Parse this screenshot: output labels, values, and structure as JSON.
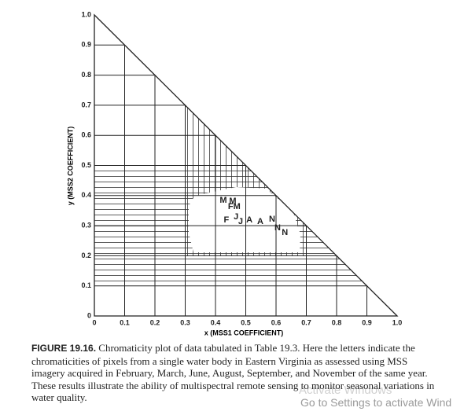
{
  "chart_data": {
    "type": "scatter",
    "xlabel": "x (MSS1 COEFFICIENT)",
    "ylabel": "y (MSS2 COEFFICIENT)",
    "xlim": [
      0,
      1
    ],
    "ylim": [
      0,
      1
    ],
    "xticks": [
      0,
      0.1,
      0.2,
      0.3,
      0.4,
      0.5,
      0.6,
      0.7,
      0.8,
      0.9,
      {
        "value": 1,
        "label": "1.0"
      }
    ],
    "yticks": [
      0,
      0.1,
      0.2,
      0.3,
      0.4,
      0.5,
      0.6,
      0.7,
      0.8,
      0.9,
      {
        "value": 1,
        "label": "1.0"
      }
    ],
    "grid": true,
    "color": "#222222",
    "x": [
      0.426,
      0.457,
      0.462,
      0.436,
      0.468,
      0.483,
      0.512,
      0.548,
      0.587,
      0.605,
      0.629
    ],
    "y": [
      0.384,
      0.381,
      0.363,
      0.318,
      0.329,
      0.313,
      0.318,
      0.313,
      0.321,
      0.292,
      0.277
    ],
    "labels": [
      "M",
      "M",
      "FM",
      "F",
      "J",
      "J",
      "A",
      "A",
      "N",
      "N",
      "N"
    ]
  },
  "caption": {
    "label": "FIGURE 19.16.",
    "text": "Chromaticity plot of data tabulated in Table 19.3. Here the letters indicate the chromaticities of pixels from a single water body in Eastern Virginia as assessed using MSS imagery acquired in February, March, June, August, September, and November of the same year. These results illustrate the ability of multispectral remote sensing to monitor seasonal variations in water quality."
  },
  "watermark": {
    "title": "Activate Windows",
    "text": "Go to Settings to activate Wind"
  }
}
